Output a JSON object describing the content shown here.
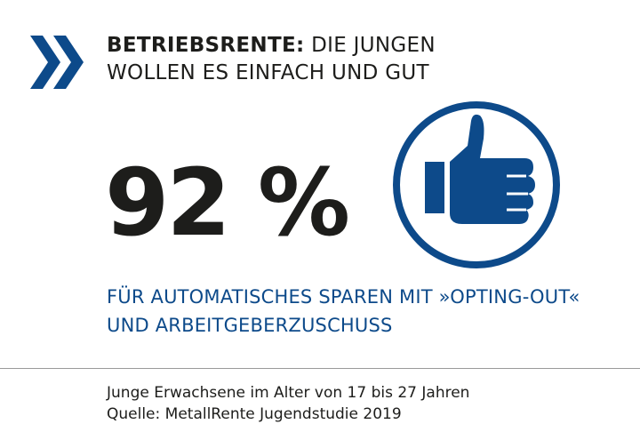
{
  "header": {
    "title_bold": "BETRIEBSRENTE:",
    "title_rest": "DIE JUNGEN",
    "title_line2": "WOLLEN ES EINFACH UND GUT"
  },
  "icons": {
    "logo": "double-chevron-right-icon",
    "thumb": "thumbs-up-icon"
  },
  "main": {
    "value": "92 %",
    "caption_line1": "FÜR AUTOMATISCHES SPAREN MIT »OPTING-OUT«",
    "caption_line2": "UND ARBEITGEBERZUSCHUSS"
  },
  "footer": {
    "line1": "Junge Erwachsene im Alter von 17 bis 27 Jahren",
    "line2": "Quelle: MetallRente Jugendstudie 2019"
  },
  "colors": {
    "brand_blue": "#0d4a8a",
    "text_dark": "#1d1d1b",
    "divider": "#9a9a9a"
  }
}
